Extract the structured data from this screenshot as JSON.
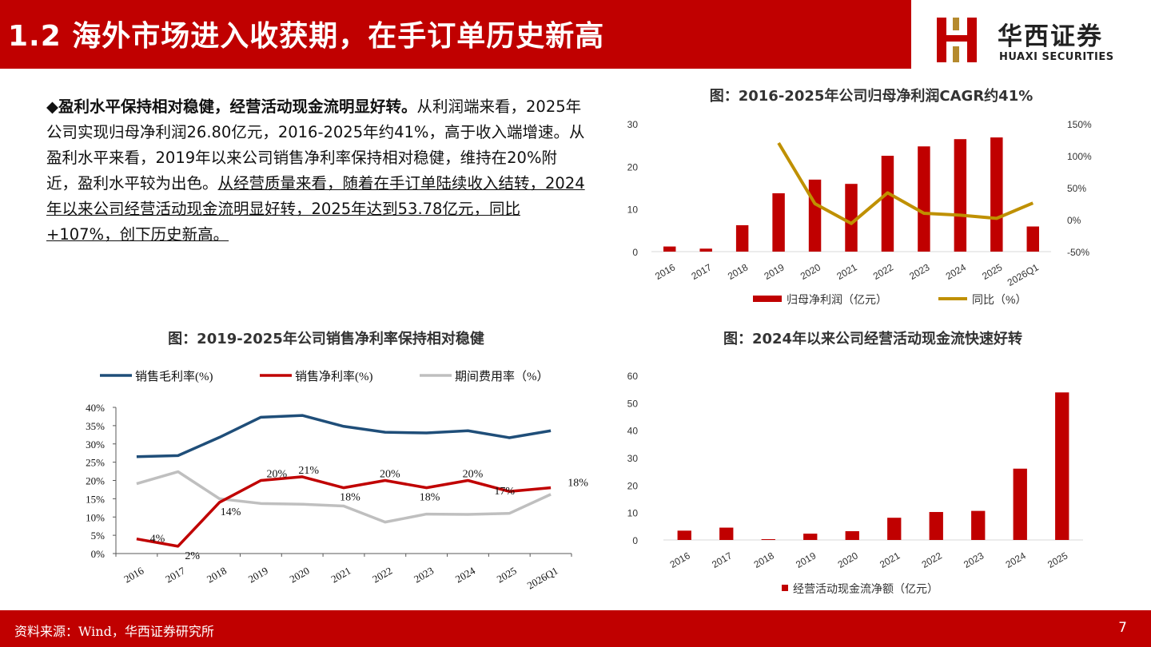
{
  "header": {
    "title": "1.2 海外市场进入收获期，在手订单历史新高",
    "logo_cn": "华西证券",
    "logo_en": "HUAXI SECURITIES"
  },
  "summary": {
    "bullet": "◆",
    "heading": "盈利水平保持相对稳健，经营活动现金流明显好转。",
    "body": "从利润端来看，2025年公司实现归母净利润26.80亿元，2016-2025年约41%，高于收入端增速。从盈利水平来看，2019年以来公司销售净利率保持相对稳健，维持在20%附近，盈利水平较为出色。",
    "underlined": "从经营质量来看，随着在手订单陆续收入结转，2024年以来公司经营活动现金流明显好转，2025年达到53.78亿元，同比+107%，创下历史新高。"
  },
  "chart_data": [
    {
      "type": "bar",
      "title": "图：2016-2025年公司归母净利润CAGR约41%",
      "categories": [
        "2016",
        "2017",
        "2018",
        "2019",
        "2020",
        "2021",
        "2022",
        "2023",
        "2024",
        "2025",
        "2026Q1"
      ],
      "series": [
        {
          "name": "归母净利润（亿元）",
          "type": "bar",
          "axis": "left",
          "color": "#c00000",
          "values": [
            1.2,
            0.7,
            6.2,
            13.7,
            16.9,
            15.9,
            22.5,
            24.7,
            26.4,
            26.8,
            5.9
          ]
        },
        {
          "name": "同比（%）",
          "type": "line",
          "axis": "right",
          "color": "#bf9000",
          "values": [
            null,
            null,
            null,
            120,
            25,
            -6,
            42,
            10,
            7,
            2,
            26
          ]
        }
      ],
      "left_axis": {
        "ticks": [
          "0",
          "10",
          "20",
          "30"
        ],
        "range": [
          0,
          30
        ]
      },
      "right_axis": {
        "ticks": [
          "-50%",
          "0%",
          "50%",
          "100%",
          "150%"
        ],
        "range": [
          -50,
          150
        ]
      },
      "legend": "bottom"
    },
    {
      "type": "line",
      "title": "图：2019-2025年公司销售净利率保持相对稳健",
      "categories": [
        "2016",
        "2017",
        "2018",
        "2019",
        "2020",
        "2021",
        "2022",
        "2023",
        "2024",
        "2025",
        "2026Q1"
      ],
      "series": [
        {
          "name": "销售毛利率(%)",
          "color": "#1f4e79",
          "values": [
            26.5,
            26.8,
            31.8,
            37.3,
            37.8,
            34.8,
            33.2,
            33.0,
            33.6,
            31.7,
            33.6
          ]
        },
        {
          "name": "销售净利率(%)",
          "color": "#c00000",
          "values": [
            4,
            2,
            14,
            20,
            21,
            18,
            20,
            18,
            20,
            17,
            18
          ],
          "labels": [
            "4%",
            "2%",
            "14%",
            "20%",
            "21%",
            "18%",
            "20%",
            "18%",
            "20%",
            "17%",
            "18%"
          ]
        },
        {
          "name": "期间费用率（%）",
          "color": "#bfbfbf",
          "values": [
            19.1,
            22.4,
            15.0,
            13.7,
            13.5,
            13.0,
            8.6,
            10.8,
            10.7,
            11.0,
            16.2
          ]
        }
      ],
      "y_axis": {
        "ticks": [
          "0%",
          "5%",
          "10%",
          "15%",
          "20%",
          "25%",
          "30%",
          "35%",
          "40%"
        ],
        "range": [
          0,
          40
        ]
      },
      "legend": "top"
    },
    {
      "type": "bar",
      "title": "图：2024年以来公司经营活动现金流快速好转",
      "categories": [
        "2016",
        "2017",
        "2018",
        "2019",
        "2020",
        "2021",
        "2022",
        "2023",
        "2024",
        "2025"
      ],
      "series": [
        {
          "name": "经营活动现金流净额（亿元）",
          "color": "#c00000",
          "values": [
            3.4,
            4.5,
            0.3,
            2.3,
            3.2,
            8.1,
            10.2,
            10.6,
            26.0,
            53.8
          ]
        }
      ],
      "y_axis": {
        "ticks": [
          "0",
          "10",
          "20",
          "30",
          "40",
          "50",
          "60"
        ],
        "range": [
          0,
          60
        ]
      },
      "legend": "bottom"
    }
  ],
  "footer": {
    "source": "资料来源：Wind，华西证券研究所",
    "page": "7"
  }
}
